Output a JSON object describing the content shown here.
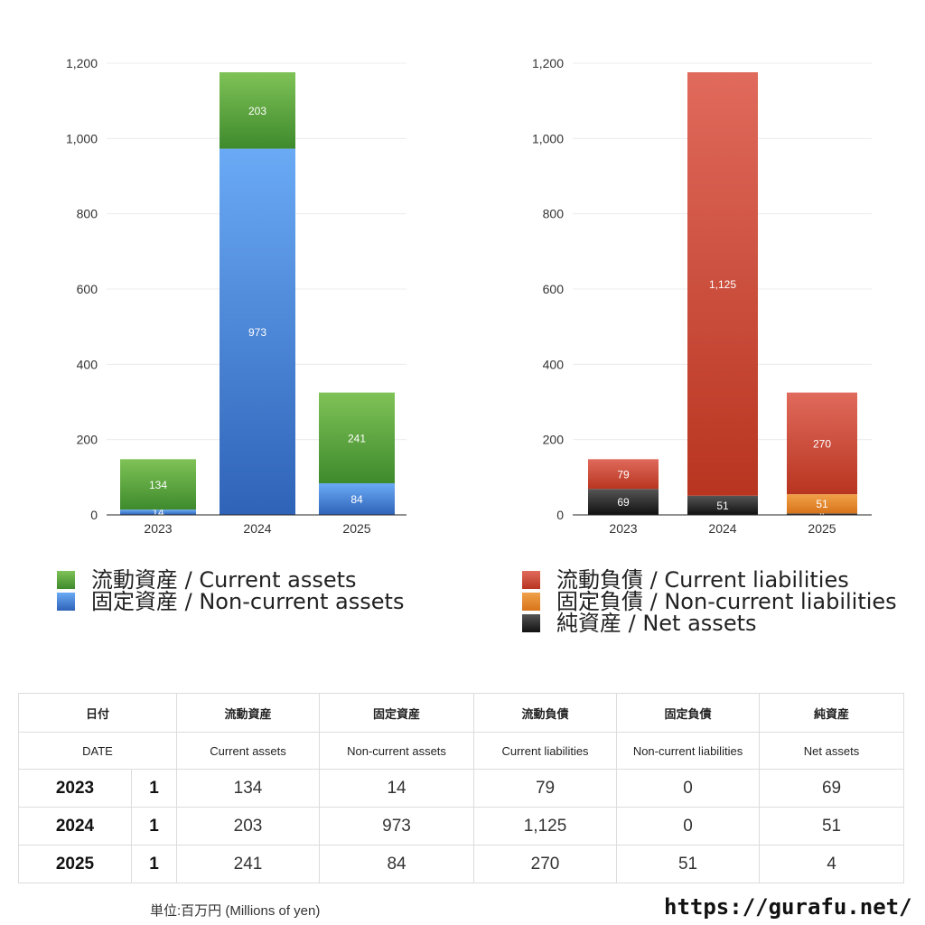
{
  "chart_data": [
    {
      "type": "bar",
      "stacked": true,
      "categories": [
        "2023",
        "2024",
        "2025"
      ],
      "ylim": [
        0,
        1200
      ],
      "yticks": [
        "0",
        "200",
        "400",
        "600",
        "800",
        "1,000",
        "1,200"
      ],
      "grid": true,
      "series": [
        {
          "name": "固定資産 / Non-current assets",
          "values": [
            14,
            973,
            84
          ],
          "labels": [
            "14",
            "973",
            "84"
          ],
          "color": "#4a86d8",
          "color_top": "#6aaaf5",
          "color_bottom": "#2f63b8"
        },
        {
          "name": "流動資産 / Current assets",
          "values": [
            134,
            203,
            241
          ],
          "labels": [
            "134",
            "203",
            "241"
          ],
          "color": "#55a840",
          "color_top": "#7fc257",
          "color_bottom": "#3e8a2c"
        }
      ],
      "legend_order": [
        1,
        0
      ]
    },
    {
      "type": "bar",
      "stacked": true,
      "categories": [
        "2023",
        "2024",
        "2025"
      ],
      "ylim": [
        0,
        1200
      ],
      "yticks": [
        "0",
        "200",
        "400",
        "600",
        "800",
        "1,000",
        "1,200"
      ],
      "grid": true,
      "series": [
        {
          "name": "純資産 / Net assets",
          "values": [
            69,
            51,
            4
          ],
          "labels": [
            "69",
            "51",
            "4"
          ],
          "color": "#333333",
          "color_top": "#555555",
          "color_bottom": "#111111"
        },
        {
          "name": "固定負債 / Non-current liabilities",
          "values": [
            0,
            0,
            51
          ],
          "labels": [
            "",
            "",
            "51"
          ],
          "color": "#e8892a",
          "color_top": "#f0a14a",
          "color_bottom": "#d8741a"
        },
        {
          "name": "流動負債 / Current liabilities",
          "values": [
            79,
            1125,
            270
          ],
          "labels": [
            "79",
            "1,125",
            "270"
          ],
          "color": "#cc4433",
          "color_top": "#e06a5c",
          "color_bottom": "#b83520"
        }
      ],
      "legend_order": [
        2,
        1,
        0
      ]
    }
  ],
  "table": {
    "header_jp": [
      "日付",
      "流動資産",
      "固定資産",
      "流動負債",
      "固定負債",
      "純資産"
    ],
    "header_en": [
      "DATE",
      "Current assets",
      "Non-current assets",
      "Current liabilities",
      "Non-current liabilities",
      "Net assets"
    ],
    "rows": [
      {
        "year": "2023",
        "month": "1",
        "values": [
          "134",
          "14",
          "79",
          "0",
          "69"
        ]
      },
      {
        "year": "2024",
        "month": "1",
        "values": [
          "203",
          "973",
          "1,125",
          "0",
          "51"
        ]
      },
      {
        "year": "2025",
        "month": "1",
        "values": [
          "241",
          "84",
          "270",
          "51",
          "4"
        ]
      }
    ]
  },
  "footer": {
    "unit": "単位:百万円 (Millions of yen)",
    "site": "https://gurafu.net/"
  }
}
